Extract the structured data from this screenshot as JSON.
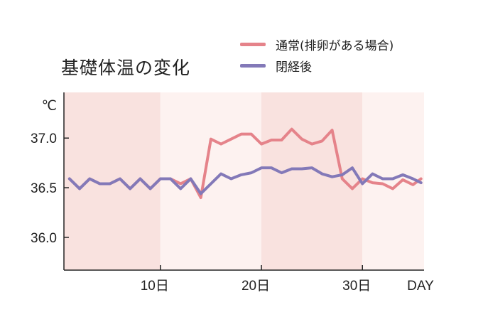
{
  "chart_data": {
    "type": "line",
    "title": "基礎体温の変化",
    "y_unit_label": "℃",
    "x_unit_label": "DAY",
    "ylim": [
      35.67,
      37.46
    ],
    "xlim": [
      0.45,
      36.1
    ],
    "y_ticks": [
      {
        "value": 36.0,
        "label": "36.0"
      },
      {
        "value": 36.5,
        "label": "36.5"
      },
      {
        "value": 37.0,
        "label": "37.0"
      }
    ],
    "x_ticks": [
      {
        "value": 10,
        "label": "10日"
      },
      {
        "value": 20,
        "label": "20日"
      },
      {
        "value": 30,
        "label": "30日"
      }
    ],
    "bands": [
      {
        "from": 0.45,
        "to": 10,
        "color": "#f9e2df"
      },
      {
        "from": 10,
        "to": 20,
        "color": "#fdf2f0"
      },
      {
        "from": 20,
        "to": 30,
        "color": "#f9e2df"
      },
      {
        "from": 30,
        "to": 36.1,
        "color": "#fdf2f0"
      }
    ],
    "legend_placement": "top-right",
    "series": [
      {
        "name": "通常(排卵がある場合)",
        "color": "#e5838a",
        "x": [
          1,
          2,
          3,
          4,
          5,
          6,
          7,
          8,
          9,
          10,
          11,
          12,
          13,
          14,
          15,
          16,
          17,
          18,
          19,
          20,
          21,
          22,
          23,
          24,
          25,
          26,
          27,
          28,
          29,
          30,
          31,
          32,
          33,
          34,
          35,
          35.8
        ],
        "values": [
          36.59,
          36.49,
          36.59,
          36.54,
          36.54,
          36.59,
          36.49,
          36.59,
          36.49,
          36.59,
          36.59,
          36.54,
          36.59,
          36.4,
          36.99,
          36.94,
          36.99,
          37.04,
          37.04,
          36.94,
          36.98,
          36.98,
          37.09,
          36.99,
          36.94,
          36.97,
          37.08,
          36.59,
          36.49,
          36.59,
          36.55,
          36.54,
          36.49,
          36.58,
          36.53,
          36.59
        ]
      },
      {
        "name": "閉経後",
        "color": "#8379b8",
        "x": [
          1,
          2,
          3,
          4,
          5,
          6,
          7,
          8,
          9,
          10,
          11,
          12,
          13,
          14,
          15,
          16,
          17,
          18,
          19,
          20,
          21,
          22,
          23,
          24,
          25,
          26,
          27,
          28,
          29,
          30,
          31,
          32,
          33,
          34,
          35,
          35.8
        ],
        "values": [
          36.59,
          36.49,
          36.59,
          36.54,
          36.54,
          36.59,
          36.49,
          36.59,
          36.49,
          36.59,
          36.59,
          36.49,
          36.59,
          36.44,
          36.54,
          36.64,
          36.59,
          36.63,
          36.65,
          36.7,
          36.7,
          36.65,
          36.69,
          36.69,
          36.7,
          36.64,
          36.61,
          36.63,
          36.7,
          36.54,
          36.64,
          36.59,
          36.59,
          36.63,
          36.59,
          36.55
        ]
      }
    ]
  }
}
